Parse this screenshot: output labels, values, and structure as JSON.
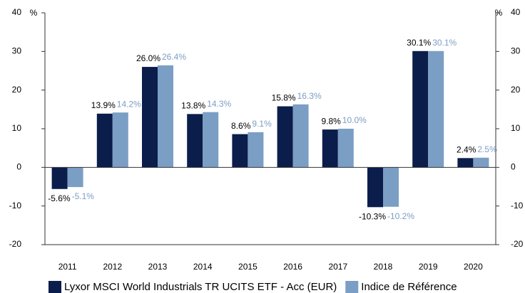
{
  "chart_data": {
    "type": "bar",
    "categories": [
      "2011",
      "2012",
      "2013",
      "2014",
      "2015",
      "2016",
      "2017",
      "2018",
      "2019",
      "2020"
    ],
    "series": [
      {
        "name": "Lyxor MSCI World Industrials TR UCITS ETF - Acc (EUR)",
        "color": "#0b1d4b",
        "label_color": "#000000",
        "values": [
          -5.6,
          13.9,
          26.0,
          13.8,
          8.6,
          15.8,
          9.8,
          -10.3,
          30.1,
          2.4
        ],
        "value_labels": [
          "-5.6%",
          "13.9%",
          "26.0%",
          "13.8%",
          "8.6%",
          "15.8%",
          "9.8%",
          "-10.3%",
          "30.1%",
          "2.4%"
        ]
      },
      {
        "name": "Indice de Référence",
        "color": "#7b9ec4",
        "label_color": "#7b9ec4",
        "values": [
          -5.1,
          14.2,
          26.4,
          14.3,
          9.1,
          16.3,
          10.0,
          -10.2,
          30.1,
          2.5
        ],
        "value_labels": [
          "-5.1%",
          "14.2%",
          "26.4%",
          "14.3%",
          "9.1%",
          "16.3%",
          "10.0%",
          "-10.2%",
          "30.1%",
          "2.5%"
        ]
      }
    ],
    "y_unit": "%",
    "y2_unit": "%",
    "ylim": [
      -20,
      40
    ],
    "yticks": [
      -20,
      -10,
      0,
      10,
      20,
      30,
      40
    ],
    "y2lim": [
      -20,
      40
    ],
    "y2ticks": [
      -20,
      -10,
      0,
      10,
      20,
      30,
      40
    ],
    "grid": false,
    "legend": "bottom"
  }
}
